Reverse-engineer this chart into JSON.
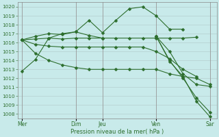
{
  "xlabel": "Pression niveau de la mer( hPa )",
  "bg_color": "#c8eaea",
  "grid_color": "#b0c8c8",
  "line_color": "#2d6e2d",
  "ylim": [
    1007.5,
    1020.5
  ],
  "yticks": [
    1008,
    1009,
    1010,
    1011,
    1012,
    1013,
    1014,
    1015,
    1016,
    1017,
    1018,
    1019,
    1020
  ],
  "xtick_labels": [
    "Mer",
    "Dim",
    "Jeu",
    "Ven",
    "Sar"
  ],
  "xtick_positions": [
    0,
    4,
    6,
    10,
    14
  ],
  "vlines": [
    0,
    4,
    6,
    10,
    14
  ],
  "vline_color": "#888888",
  "series": [
    {
      "x": [
        0,
        1,
        2,
        3,
        4,
        5,
        6,
        7,
        8,
        9,
        10,
        11,
        12
      ],
      "y": [
        1012.8,
        1014.1,
        1016.5,
        1017.0,
        1017.2,
        1018.5,
        1017.1,
        1018.5,
        1019.8,
        1020.0,
        1019.0,
        1017.5,
        1017.5
      ]
    },
    {
      "x": [
        0,
        1,
        2,
        3,
        4,
        5,
        6,
        7,
        8,
        9,
        10,
        11,
        12,
        13
      ],
      "y": [
        1016.3,
        1016.4,
        1016.5,
        1016.4,
        1016.5,
        1016.5,
        1016.5,
        1016.5,
        1016.5,
        1016.5,
        1016.5,
        1016.5,
        1016.5,
        1016.6
      ]
    },
    {
      "x": [
        0,
        1,
        2,
        3,
        4,
        5,
        6
      ],
      "y": [
        1016.3,
        1016.7,
        1017.0,
        1016.9,
        1017.2,
        1016.8,
        1016.5
      ]
    },
    {
      "x": [
        0,
        1,
        2,
        3,
        4,
        5,
        6,
        7,
        8,
        9,
        10,
        11,
        12,
        13
      ],
      "y": [
        1016.3,
        1015.8,
        1015.6,
        1015.5,
        1015.5,
        1015.5,
        1015.5,
        1015.5,
        1015.5,
        1015.5,
        1015.0,
        1014.2,
        1013.0,
        1012.2
      ]
    },
    {
      "x": [
        0,
        1,
        2,
        3,
        4,
        5,
        6,
        7,
        8,
        9,
        10,
        11,
        12,
        13,
        14
      ],
      "y": [
        1016.3,
        1014.8,
        1014.0,
        1013.5,
        1013.2,
        1013.0,
        1013.0,
        1013.0,
        1013.0,
        1013.0,
        1013.0,
        1012.5,
        1012.2,
        1012.0,
        1011.3
      ]
    },
    {
      "x": [
        10,
        11,
        12,
        13,
        14
      ],
      "y": [
        1016.7,
        1013.9,
        1012.2,
        1009.4,
        1007.7
      ]
    },
    {
      "x": [
        10,
        11,
        12,
        13,
        14
      ],
      "y": [
        1016.7,
        1014.0,
        1012.0,
        1009.8,
        1008.2
      ]
    },
    {
      "x": [
        10,
        11,
        12,
        13,
        14
      ],
      "y": [
        1016.7,
        1015.0,
        1012.5,
        1011.3,
        1011.1
      ]
    }
  ]
}
